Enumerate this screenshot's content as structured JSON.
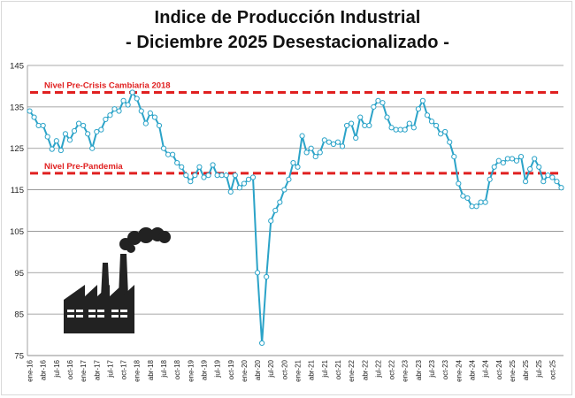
{
  "chart_data": {
    "type": "line",
    "title": "Indice de Producción Industrial",
    "subtitle": "- Diciembre 2025 Desestacionalizado -",
    "xlabel": "",
    "ylabel": "",
    "ylim": [
      75,
      145
    ],
    "yticks": [
      75,
      85,
      95,
      105,
      115,
      125,
      135,
      145
    ],
    "grid": true,
    "series": [
      {
        "name": "Indice de Producción Industrial",
        "color": "#2ba3c8",
        "x": [
          "ene-16",
          "feb-16",
          "mar-16",
          "abr-16",
          "may-16",
          "jun-16",
          "jul-16",
          "ago-16",
          "sep-16",
          "oct-16",
          "nov-16",
          "dic-16",
          "ene-17",
          "feb-17",
          "mar-17",
          "abr-17",
          "may-17",
          "jun-17",
          "jul-17",
          "ago-17",
          "sep-17",
          "oct-17",
          "nov-17",
          "dic-17",
          "ene-18",
          "feb-18",
          "mar-18",
          "abr-18",
          "may-18",
          "jun-18",
          "jul-18",
          "ago-18",
          "sep-18",
          "oct-18",
          "nov-18",
          "dic-18",
          "ene-19",
          "feb-19",
          "mar-19",
          "abr-19",
          "may-19",
          "jun-19",
          "jul-19",
          "ago-19",
          "sep-19",
          "oct-19",
          "nov-19",
          "dic-19",
          "ene-20",
          "feb-20",
          "mar-20",
          "abr-20",
          "may-20",
          "jun-20",
          "jul-20",
          "ago-20",
          "sep-20",
          "oct-20",
          "nov-20",
          "dic-20",
          "ene-21",
          "feb-21",
          "mar-21",
          "abr-21",
          "may-21",
          "jun-21",
          "jul-21",
          "ago-21",
          "sep-21",
          "oct-21",
          "nov-21",
          "dic-21",
          "ene-22",
          "feb-22",
          "mar-22",
          "abr-22",
          "may-22",
          "jun-22",
          "jul-22",
          "ago-22",
          "sep-22",
          "oct-22",
          "nov-22",
          "dic-22",
          "ene-23",
          "feb-23",
          "mar-23",
          "abr-23",
          "may-23",
          "jun-23",
          "jul-23",
          "ago-23",
          "sep-23",
          "oct-23",
          "nov-23",
          "dic-23",
          "ene-24",
          "feb-24",
          "mar-24",
          "abr-24",
          "may-24",
          "jun-24",
          "jul-24",
          "ago-24",
          "sep-24",
          "oct-24",
          "nov-24",
          "dic-24",
          "ene-25",
          "feb-25",
          "mar-25",
          "abr-25",
          "may-25",
          "jun-25",
          "jul-25",
          "ago-25",
          "sep-25",
          "oct-25",
          "nov-25",
          "dic-25"
        ],
        "values": [
          134.0,
          132.5,
          130.5,
          130.5,
          127.8,
          124.8,
          126.8,
          124.5,
          128.5,
          127.0,
          129.2,
          131.0,
          130.5,
          128.5,
          125.0,
          129.0,
          129.5,
          132.0,
          133.0,
          134.5,
          134.0,
          136.5,
          135.5,
          138.5,
          137.0,
          134.0,
          131.0,
          133.5,
          132.5,
          130.5,
          125.0,
          123.5,
          123.5,
          121.5,
          120.5,
          118.5,
          117.0,
          118.5,
          120.5,
          118.0,
          118.5,
          121.0,
          118.5,
          118.5,
          118.5,
          114.5,
          118.5,
          115.5,
          116.5,
          117.5,
          118.0,
          95.0,
          78.0,
          94.0,
          107.5,
          110.0,
          112.0,
          115.0,
          117.5,
          121.5,
          120.5,
          128.0,
          124.0,
          125.0,
          123.0,
          124.0,
          127.0,
          126.5,
          126.0,
          126.5,
          125.5,
          130.5,
          131.0,
          127.5,
          132.5,
          130.5,
          130.5,
          135.0,
          136.5,
          136.0,
          132.5,
          130.0,
          129.5,
          129.5,
          129.5,
          131.0,
          130.0,
          134.5,
          136.5,
          133.0,
          131.5,
          130.5,
          128.5,
          129.0,
          126.5,
          123.0,
          116.5,
          113.5,
          113.0,
          111.0,
          111.0,
          112.0,
          112.0,
          117.5,
          120.5,
          122.0,
          121.5,
          122.5,
          122.5,
          122.0,
          123.0,
          117.0,
          120.0,
          122.5,
          120.5,
          117.0,
          118.5,
          118.0,
          117.0,
          115.5
        ]
      }
    ],
    "reference_lines": [
      {
        "label": "Nivel Pre-Crisis Cambiaria 2018",
        "value": 138.5,
        "color": "#e02020"
      },
      {
        "label": "Nivel Pre-Pandemia",
        "value": 119.0,
        "color": "#e02020"
      }
    ],
    "xtick_labels": [
      "ene-16",
      "abr-16",
      "jul-16",
      "oct-16",
      "ene-17",
      "abr-17",
      "jul-17",
      "oct-17",
      "ene-18",
      "abr-18",
      "jul-18",
      "oct-18",
      "ene-19",
      "abr-19",
      "jul-19",
      "oct-19",
      "ene-20",
      "abr-20",
      "jul-20",
      "oct-20",
      "ene-21",
      "abr-21",
      "jul-21",
      "oct-21",
      "ene-22",
      "abr-22",
      "jul-22",
      "oct-22",
      "ene-23",
      "abr-23",
      "jul-23",
      "oct-23",
      "ene-24",
      "abr-24",
      "jul-24",
      "oct-24",
      "ene-25",
      "abr-25",
      "jul-25",
      "oct-25"
    ],
    "icon": "factory-icon"
  }
}
